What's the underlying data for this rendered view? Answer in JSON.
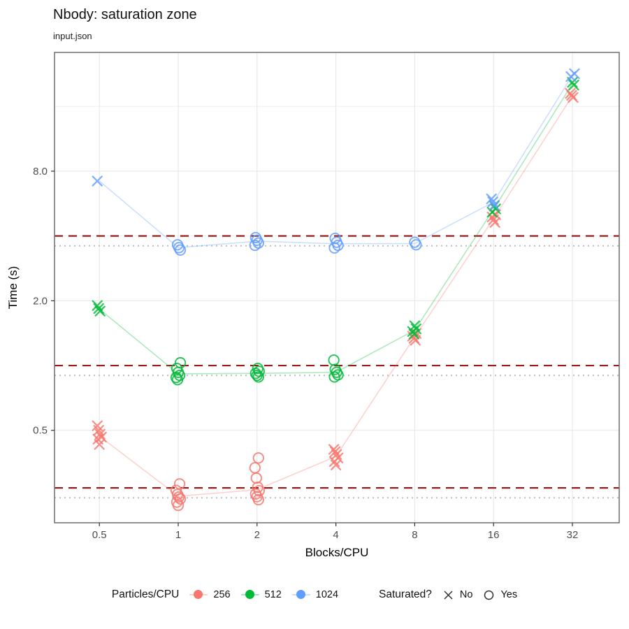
{
  "chart_data": {
    "type": "scatter",
    "title": "Nbody: saturation zone",
    "subtitle": "input.json",
    "xlabel": "Blocks/CPU",
    "ylabel": "Time (s)",
    "x_scale": "log2",
    "y_scale": "log2",
    "x_ticks": [
      0.5,
      1,
      2,
      4,
      8,
      16,
      32
    ],
    "x_tick_labels": [
      "0.5",
      "1",
      "2",
      "4",
      "8",
      "16",
      "32"
    ],
    "y_ticks": [
      0.5,
      2.0,
      8.0
    ],
    "y_tick_labels": [
      "0.5",
      "2.0",
      "8.0"
    ],
    "x_range": [
      0.337,
      48.3
    ],
    "y_range": [
      0.186,
      28.5
    ],
    "grid": {
      "major_y": [
        0.5,
        2,
        8
      ],
      "minor_y": [
        1,
        4,
        16
      ],
      "major_x": [
        0.5,
        1,
        2,
        4,
        8,
        16,
        32
      ],
      "color_major": "#E7E7E7",
      "color_minor": "#EFEFEF"
    },
    "reference_lines": {
      "dashed": {
        "color": "#9B1B1B",
        "values": [
          4.0,
          1.0,
          0.27
        ]
      },
      "dotted": {
        "color": "#BDBDBD",
        "values": [
          3.6,
          0.9,
          0.243
        ]
      }
    },
    "shape_legend_meaning": {
      "x": "No",
      "o": "Yes"
    },
    "series": [
      {
        "name": "256",
        "color": "#F8766D",
        "line_x": [
          0.5,
          1,
          2,
          4,
          8,
          16,
          32
        ],
        "line_y": [
          0.47,
          0.247,
          0.265,
          0.378,
          1.36,
          4.82,
          17.9
        ],
        "points": [
          [
            0.5,
            0.525,
            "x"
          ],
          [
            0.5,
            0.5,
            "x"
          ],
          [
            0.5,
            0.48,
            "x"
          ],
          [
            0.5,
            0.465,
            "x"
          ],
          [
            0.5,
            0.455,
            "x"
          ],
          [
            0.5,
            0.43,
            "x"
          ],
          [
            1,
            0.282,
            "o"
          ],
          [
            1,
            0.263,
            "o"
          ],
          [
            1,
            0.252,
            "o"
          ],
          [
            1,
            0.245,
            "o"
          ],
          [
            1,
            0.24,
            "o"
          ],
          [
            1,
            0.232,
            "o"
          ],
          [
            1,
            0.224,
            "o"
          ],
          [
            2,
            0.372,
            "o"
          ],
          [
            2,
            0.335,
            "o"
          ],
          [
            2,
            0.3,
            "o"
          ],
          [
            2,
            0.272,
            "o"
          ],
          [
            2,
            0.262,
            "o"
          ],
          [
            2,
            0.253,
            "o"
          ],
          [
            2,
            0.246,
            "o"
          ],
          [
            2,
            0.238,
            "o"
          ],
          [
            4,
            0.408,
            "x"
          ],
          [
            4,
            0.398,
            "x"
          ],
          [
            4,
            0.386,
            "x"
          ],
          [
            4,
            0.372,
            "x"
          ],
          [
            4,
            0.358,
            "x"
          ],
          [
            4,
            0.345,
            "x"
          ],
          [
            8,
            1.41,
            "x"
          ],
          [
            8,
            1.37,
            "x"
          ],
          [
            8,
            1.34,
            "x"
          ],
          [
            8,
            1.31,
            "x"
          ],
          [
            16,
            5.02,
            "x"
          ],
          [
            16,
            4.9,
            "x"
          ],
          [
            16,
            4.76,
            "x"
          ],
          [
            16,
            4.62,
            "x"
          ],
          [
            32,
            18.4,
            "x"
          ],
          [
            32,
            18.0,
            "x"
          ],
          [
            32,
            17.6,
            "x"
          ]
        ]
      },
      {
        "name": "512",
        "color": "#00BA38",
        "line_x": [
          0.5,
          1,
          2,
          4,
          8,
          16,
          32
        ],
        "line_y": [
          1.83,
          0.915,
          0.92,
          0.93,
          1.46,
          5.32,
          20.4
        ],
        "points": [
          [
            0.5,
            1.9,
            "x"
          ],
          [
            0.5,
            1.84,
            "x"
          ],
          [
            0.5,
            1.79,
            "x"
          ],
          [
            1,
            1.03,
            "o"
          ],
          [
            1,
            0.97,
            "o"
          ],
          [
            1,
            0.93,
            "o"
          ],
          [
            1,
            0.9,
            "o"
          ],
          [
            1,
            0.88,
            "o"
          ],
          [
            1,
            0.86,
            "o"
          ],
          [
            2,
            0.97,
            "o"
          ],
          [
            2,
            0.94,
            "o"
          ],
          [
            2,
            0.92,
            "o"
          ],
          [
            2,
            0.9,
            "o"
          ],
          [
            2,
            0.885,
            "o"
          ],
          [
            4,
            1.06,
            "o"
          ],
          [
            4,
            0.96,
            "o"
          ],
          [
            4,
            0.93,
            "o"
          ],
          [
            4,
            0.905,
            "o"
          ],
          [
            4,
            0.885,
            "o"
          ],
          [
            8,
            1.53,
            "x"
          ],
          [
            8,
            1.48,
            "x"
          ],
          [
            8,
            1.44,
            "x"
          ],
          [
            8,
            1.4,
            "x"
          ],
          [
            16,
            5.52,
            "x"
          ],
          [
            16,
            5.34,
            "x"
          ],
          [
            16,
            5.16,
            "x"
          ],
          [
            32,
            20.7,
            "x"
          ],
          [
            32,
            20.1,
            "x"
          ]
        ]
      },
      {
        "name": "1024",
        "color": "#619CFF",
        "line_x": [
          0.5,
          1,
          2,
          4,
          8,
          16,
          32
        ],
        "line_y": [
          7.2,
          3.53,
          3.78,
          3.68,
          3.69,
          5.74,
          22.3
        ],
        "points": [
          [
            0.5,
            7.2,
            "x"
          ],
          [
            1,
            3.64,
            "o"
          ],
          [
            1,
            3.53,
            "o"
          ],
          [
            1,
            3.44,
            "o"
          ],
          [
            2,
            3.93,
            "o"
          ],
          [
            2,
            3.82,
            "o"
          ],
          [
            2,
            3.71,
            "o"
          ],
          [
            2,
            3.62,
            "o"
          ],
          [
            4,
            3.9,
            "o"
          ],
          [
            4,
            3.74,
            "o"
          ],
          [
            4,
            3.62,
            "o"
          ],
          [
            4,
            3.52,
            "o"
          ],
          [
            8,
            3.74,
            "o"
          ],
          [
            8,
            3.64,
            "o"
          ],
          [
            16,
            5.95,
            "x"
          ],
          [
            16,
            5.76,
            "x"
          ],
          [
            16,
            5.55,
            "x"
          ],
          [
            32,
            22.7,
            "x"
          ],
          [
            32,
            22.0,
            "x"
          ]
        ]
      }
    ]
  },
  "legend": {
    "color_title": "Particles/CPU",
    "entries": [
      {
        "label": "256",
        "color": "#F8766D"
      },
      {
        "label": "512",
        "color": "#00BA38"
      },
      {
        "label": "1024",
        "color": "#619CFF"
      }
    ],
    "shape_title": "Saturated?",
    "shape_entries": [
      {
        "label": "No",
        "shape": "x"
      },
      {
        "label": "Yes",
        "shape": "circle"
      }
    ]
  }
}
